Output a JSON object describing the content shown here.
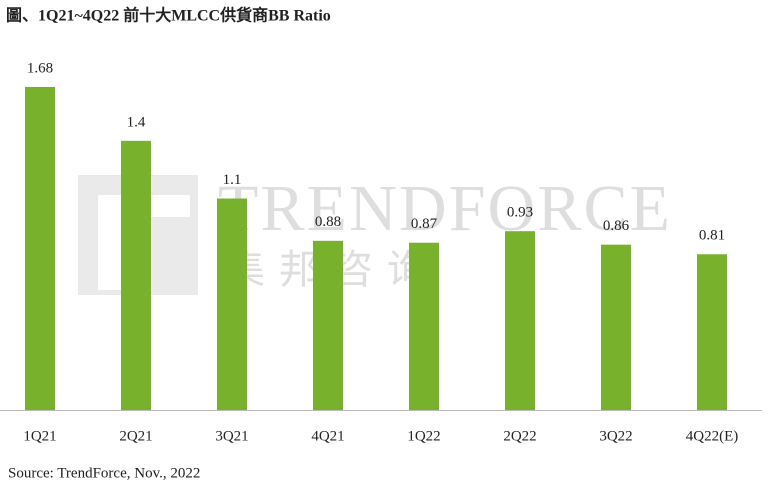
{
  "chart_data": {
    "type": "bar",
    "title": "圖、1Q21~4Q22 前十大MLCC供貨商BB Ratio",
    "categories": [
      "1Q21",
      "2Q21",
      "3Q21",
      "4Q21",
      "1Q22",
      "2Q22",
      "3Q22",
      "4Q22(E)"
    ],
    "values": [
      1.68,
      1.4,
      1.1,
      0.88,
      0.87,
      0.93,
      0.86,
      0.81
    ],
    "color": "#78b12b",
    "source": "Source: TrendForce, Nov., 2022",
    "watermark": "TRENDFORCE",
    "watermark_sub": "集邦咨询"
  }
}
